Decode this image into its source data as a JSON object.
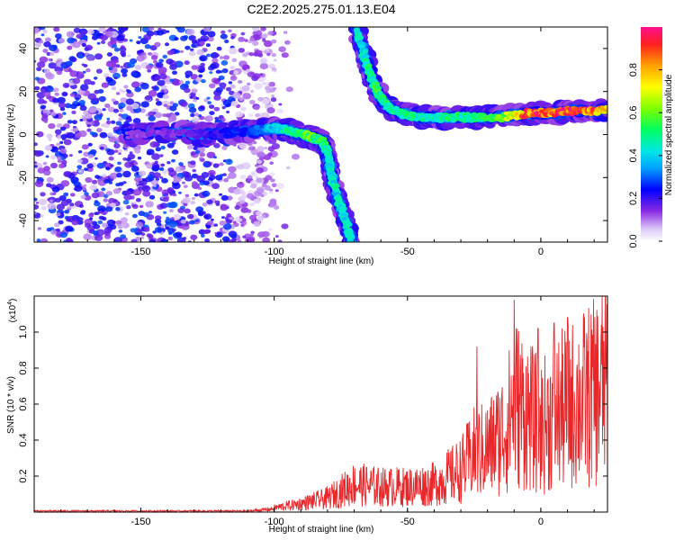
{
  "title": "C2E2.2025.275.01.13.E04",
  "chart_data": [
    {
      "type": "heatmap",
      "name": "spectrogram",
      "xlabel": "Height of straight line (km)",
      "ylabel": "Frequency (Hz)",
      "xlim": [
        -190,
        25
      ],
      "ylim": [
        -50,
        50
      ],
      "xticks": [
        -150,
        -100,
        -50,
        0
      ],
      "yticks": [
        -40,
        -20,
        0,
        20,
        40
      ],
      "xtick_labels": [
        "-150",
        "-100",
        "-50",
        "0"
      ],
      "ytick_labels": [
        "-40",
        "-20",
        "0",
        "20",
        "40"
      ],
      "colorbar": {
        "label": "Normalized spectral amplitude",
        "range": [
          0,
          1
        ],
        "ticks": [
          0.0,
          0.2,
          0.4,
          0.6,
          0.8
        ],
        "tick_labels": [
          "0.0",
          "0.2",
          "0.4",
          "0.6",
          "0.8"
        ]
      },
      "noise_region": {
        "x": [
          -190,
          -100
        ],
        "y": [
          -50,
          50
        ],
        "amplitude": [
          0.05,
          0.3
        ]
      },
      "tracks": [
        {
          "name": "lower branch",
          "x": [
            -155,
            -140,
            -125,
            -115,
            -105,
            -100,
            -95,
            -90,
            -86,
            -82,
            -80,
            -79,
            -78,
            -76,
            -74,
            -72,
            -71
          ],
          "y": [
            0,
            1,
            0,
            1,
            2,
            3,
            2,
            0,
            -1,
            -3,
            -8,
            -15,
            -22,
            -30,
            -38,
            -45,
            -50
          ],
          "amplitude": [
            0.15,
            0.15,
            0.2,
            0.25,
            0.3,
            0.4,
            0.5,
            0.55,
            0.6,
            0.55,
            0.45,
            0.45,
            0.45,
            0.45,
            0.45,
            0.45,
            0.45
          ]
        },
        {
          "name": "upper branch",
          "x": [
            -69,
            -67,
            -65,
            -63,
            -61,
            -58,
            -55,
            -50,
            -45,
            -40,
            -35,
            -30,
            -25,
            -20,
            -15,
            -10,
            -5,
            0,
            5,
            10,
            15,
            20,
            25
          ],
          "y": [
            48,
            40,
            32,
            25,
            19,
            14,
            11,
            9,
            8,
            8,
            8,
            8,
            8,
            8,
            8,
            9,
            10,
            10,
            10,
            11,
            11,
            11,
            12
          ],
          "amplitude": [
            0.45,
            0.45,
            0.5,
            0.5,
            0.55,
            0.5,
            0.5,
            0.5,
            0.5,
            0.5,
            0.5,
            0.5,
            0.55,
            0.55,
            0.6,
            0.75,
            0.9,
            0.95,
            0.9,
            0.95,
            0.95,
            0.9,
            0.75
          ]
        }
      ]
    },
    {
      "type": "line",
      "name": "snr",
      "xlabel": "Height of straight line (km)",
      "ylabel": "SNR (10 * v/v)",
      "scale_label": "(x10",
      "scale_exponent": "4",
      "xlim": [
        -190,
        25
      ],
      "ylim": [
        0,
        1.2
      ],
      "xticks": [
        -150,
        -100,
        -50,
        0
      ],
      "yticks": [
        0.2,
        0.4,
        0.6,
        0.8,
        1.0
      ],
      "xtick_labels": [
        "-150",
        "-100",
        "-50",
        "0"
      ],
      "ytick_labels": [
        "0.2",
        "0.4",
        "0.6",
        "0.8",
        "1.0"
      ],
      "series": [
        {
          "name": "SNR",
          "color": "#e8272a",
          "envelope_x": [
            -190,
            -110,
            -100,
            -90,
            -80,
            -70,
            -60,
            -50,
            -40,
            -30,
            -25,
            -20,
            -15,
            -12,
            -10,
            -5,
            0,
            5,
            10,
            15,
            20,
            25
          ],
          "envelope_y": [
            0.01,
            0.01,
            0.03,
            0.06,
            0.1,
            0.2,
            0.18,
            0.18,
            0.2,
            0.3,
            0.42,
            0.45,
            0.55,
            0.65,
            0.8,
            0.7,
            0.6,
            0.7,
            0.75,
            0.8,
            0.85,
            0.95
          ],
          "peaks": [
            {
              "x": -10,
              "y": 1.18
            },
            {
              "x": 10,
              "y": 1.08
            },
            {
              "x": 5,
              "y": 1.05
            },
            {
              "x": -1,
              "y": 1.02
            },
            {
              "x": -24,
              "y": 0.92
            }
          ]
        }
      ]
    }
  ]
}
